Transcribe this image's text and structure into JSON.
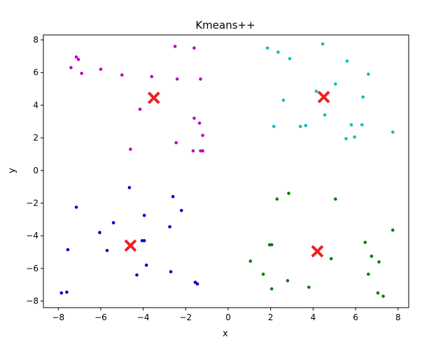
{
  "chart_data": {
    "type": "scatter",
    "title": "Kmeans++",
    "xlabel": "x",
    "ylabel": "y",
    "xlim": [
      -8.7,
      8.5
    ],
    "ylim": [
      -8.4,
      8.3
    ],
    "xticks": [
      -8,
      -6,
      -4,
      -2,
      0,
      2,
      4,
      6,
      8
    ],
    "yticks": [
      -8,
      -6,
      -4,
      -2,
      0,
      2,
      4,
      6,
      8
    ],
    "xtick_labels": [
      "−8",
      "−6",
      "−4",
      "−2",
      "0",
      "2",
      "4",
      "6",
      "8"
    ],
    "ytick_labels": [
      "−8",
      "−6",
      "−4",
      "−2",
      "0",
      "2",
      "4",
      "6",
      "8"
    ],
    "grid": false,
    "colors": {
      "magenta": "#bf00bf",
      "cyan": "#00bfbf",
      "blue": "#0000cc",
      "green": "#007f00",
      "centroid": "#ee2222"
    },
    "series": [
      {
        "color_key": "magenta",
        "points": [
          [
            -7.15,
            6.95
          ],
          [
            -7.05,
            6.8
          ],
          [
            -7.4,
            6.3
          ],
          [
            -6.9,
            5.95
          ],
          [
            -6.0,
            6.2
          ],
          [
            -5.0,
            5.85
          ],
          [
            -3.6,
            5.75
          ],
          [
            -2.5,
            7.6
          ],
          [
            -1.6,
            7.5
          ],
          [
            -2.4,
            5.6
          ],
          [
            -1.3,
            5.6
          ],
          [
            -4.15,
            3.75
          ],
          [
            -1.6,
            3.2
          ],
          [
            -1.35,
            2.9
          ],
          [
            -1.2,
            2.15
          ],
          [
            -2.45,
            1.7
          ],
          [
            -4.6,
            1.3
          ],
          [
            -1.65,
            1.2
          ],
          [
            -1.3,
            1.2
          ],
          [
            -1.2,
            1.2
          ]
        ]
      },
      {
        "color_key": "cyan",
        "points": [
          [
            1.85,
            7.5
          ],
          [
            2.35,
            7.25
          ],
          [
            2.9,
            6.85
          ],
          [
            4.45,
            7.75
          ],
          [
            5.6,
            6.7
          ],
          [
            6.6,
            5.9
          ],
          [
            5.05,
            5.3
          ],
          [
            4.15,
            4.85
          ],
          [
            2.6,
            4.3
          ],
          [
            6.35,
            4.5
          ],
          [
            4.55,
            3.4
          ],
          [
            2.15,
            2.7
          ],
          [
            3.4,
            2.7
          ],
          [
            3.65,
            2.75
          ],
          [
            5.8,
            2.8
          ],
          [
            6.3,
            2.8
          ],
          [
            5.55,
            1.95
          ],
          [
            5.95,
            2.05
          ],
          [
            7.75,
            2.35
          ]
        ]
      },
      {
        "color_key": "blue",
        "points": [
          [
            -4.65,
            -1.05
          ],
          [
            -2.6,
            -1.6
          ],
          [
            -7.15,
            -2.25
          ],
          [
            -2.2,
            -2.45
          ],
          [
            -3.95,
            -2.75
          ],
          [
            -5.4,
            -3.2
          ],
          [
            -6.05,
            -3.8
          ],
          [
            -2.75,
            -3.45
          ],
          [
            -4.05,
            -4.3
          ],
          [
            -3.95,
            -4.3
          ],
          [
            -7.55,
            -4.85
          ],
          [
            -5.7,
            -4.9
          ],
          [
            -3.85,
            -5.8
          ],
          [
            -2.7,
            -6.2
          ],
          [
            -4.3,
            -6.4
          ],
          [
            -1.55,
            -6.85
          ],
          [
            -1.45,
            -6.95
          ],
          [
            -7.85,
            -7.5
          ],
          [
            -7.6,
            -7.45
          ]
        ]
      },
      {
        "color_key": "green",
        "points": [
          [
            2.85,
            -1.4
          ],
          [
            2.3,
            -1.75
          ],
          [
            5.05,
            -1.75
          ],
          [
            7.75,
            -3.65
          ],
          [
            6.45,
            -4.4
          ],
          [
            1.95,
            -4.55
          ],
          [
            2.05,
            -4.55
          ],
          [
            6.75,
            -5.25
          ],
          [
            4.85,
            -5.4
          ],
          [
            1.05,
            -5.55
          ],
          [
            7.1,
            -5.6
          ],
          [
            1.65,
            -6.35
          ],
          [
            6.6,
            -6.35
          ],
          [
            2.8,
            -6.75
          ],
          [
            3.8,
            -7.15
          ],
          [
            2.05,
            -7.25
          ],
          [
            7.05,
            -7.5
          ],
          [
            7.3,
            -7.7
          ]
        ]
      }
    ],
    "centroids": [
      [
        -3.5,
        4.45
      ],
      [
        4.5,
        4.5
      ],
      [
        -4.6,
        -4.6
      ],
      [
        4.2,
        -4.95
      ]
    ]
  }
}
